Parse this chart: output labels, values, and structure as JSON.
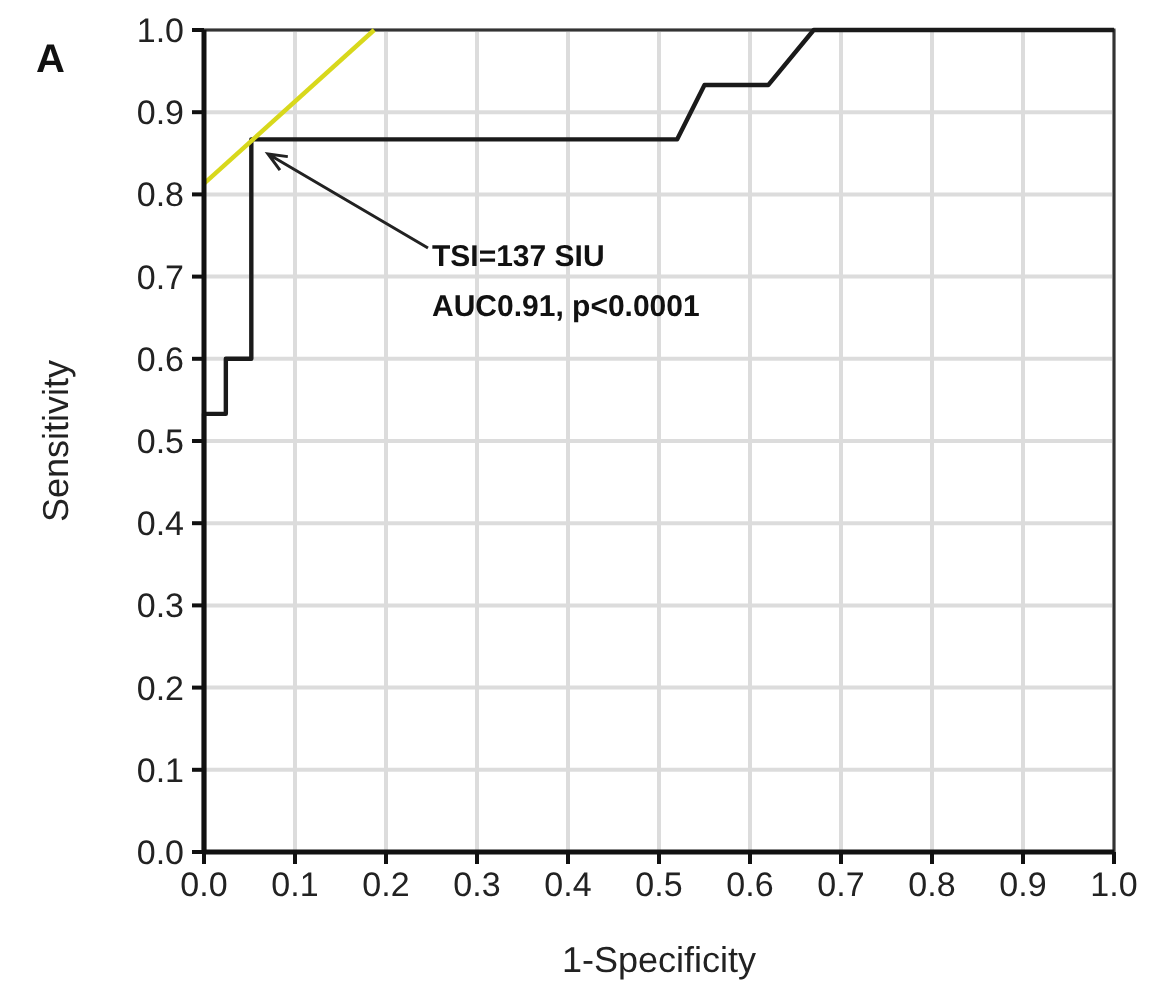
{
  "chart_data": {
    "type": "line",
    "title": "A",
    "xlabel": "1-Specificity",
    "ylabel": "Sensitivity",
    "xlim": [
      0,
      1
    ],
    "ylim": [
      0,
      1
    ],
    "xticks": [
      {
        "value": 0,
        "label": "0.0"
      },
      {
        "value": 0.1,
        "label": "0.1"
      },
      {
        "value": 0.2,
        "label": "0.2"
      },
      {
        "value": 0.3,
        "label": "0.3"
      },
      {
        "value": 0.4,
        "label": "0.4"
      },
      {
        "value": 0.5,
        "label": "0.5"
      },
      {
        "value": 0.6,
        "label": "0.6"
      },
      {
        "value": 0.7,
        "label": "0.7"
      },
      {
        "value": 0.8,
        "label": "0.8"
      },
      {
        "value": 0.9,
        "label": "0.9"
      },
      {
        "value": 1,
        "label": "1.0"
      }
    ],
    "yticks": [
      {
        "value": 0,
        "label": "0.0"
      },
      {
        "value": 0.1,
        "label": "0.1"
      },
      {
        "value": 0.2,
        "label": "0.2"
      },
      {
        "value": 0.3,
        "label": "0.3"
      },
      {
        "value": 0.4,
        "label": "0.4"
      },
      {
        "value": 0.5,
        "label": "0.5"
      },
      {
        "value": 0.6,
        "label": "0.6"
      },
      {
        "value": 0.7,
        "label": "0.7"
      },
      {
        "value": 0.8,
        "label": "0.8"
      },
      {
        "value": 0.9,
        "label": "0.9"
      },
      {
        "value": 1,
        "label": "1.0"
      }
    ],
    "grid": true,
    "marker": "none",
    "line_style": "solid",
    "series": [
      {
        "color": "#1a1a1a",
        "x": [
          0,
          0,
          0.024,
          0.024,
          0.052,
          0.052,
          0.52,
          0.55,
          0.62,
          0.67,
          1
        ],
        "values": [
          0,
          0.533,
          0.533,
          0.6,
          0.6,
          0.867,
          0.867,
          0.933,
          0.933,
          1,
          1
        ]
      },
      {
        "color": "#d8d81c",
        "x": [
          0,
          0.187
        ],
        "values": [
          0.813,
          1
        ]
      }
    ],
    "annotations": [
      "TSI=137 SIU\nAUC0.91, p<0.0001"
    ]
  }
}
